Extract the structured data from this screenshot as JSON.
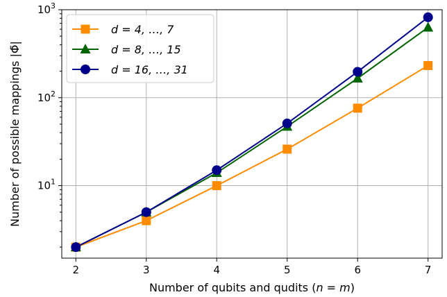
{
  "chart_data": {
    "type": "line",
    "x": [
      2,
      3,
      4,
      5,
      6,
      7
    ],
    "xlabel": "Number of qubits and qudits (n = m)",
    "ylabel": "Number of possible mappings |Φ̃|",
    "yscale": "log",
    "xlim": [
      1.8,
      7.2
    ],
    "ylim": [
      1.5,
      1000
    ],
    "x_ticks": [
      {
        "value": 2,
        "label": "2"
      },
      {
        "value": 3,
        "label": "3"
      },
      {
        "value": 4,
        "label": "4"
      },
      {
        "value": 5,
        "label": "5"
      },
      {
        "value": 6,
        "label": "6"
      },
      {
        "value": 7,
        "label": "7"
      }
    ],
    "y_ticks": [
      {
        "value": 10,
        "base": "10",
        "exp": "1"
      },
      {
        "value": 100,
        "base": "10",
        "exp": "2"
      },
      {
        "value": 1000,
        "base": "10",
        "exp": "3"
      }
    ],
    "grid": true,
    "legend_position": "top-left",
    "series": [
      {
        "name": "d = 4, …, 7",
        "color": "#ff8c00",
        "marker": "square",
        "values": [
          2,
          4,
          10,
          26,
          76,
          232
        ]
      },
      {
        "name": "d = 8, …, 15",
        "color": "#006400",
        "marker": "triangle",
        "values": [
          2,
          5,
          14,
          47,
          166,
          630
        ]
      },
      {
        "name": "d = 16, …, 31",
        "color": "#00008b",
        "marker": "circle",
        "values": [
          2,
          5,
          15,
          51,
          197,
          820
        ]
      }
    ]
  }
}
